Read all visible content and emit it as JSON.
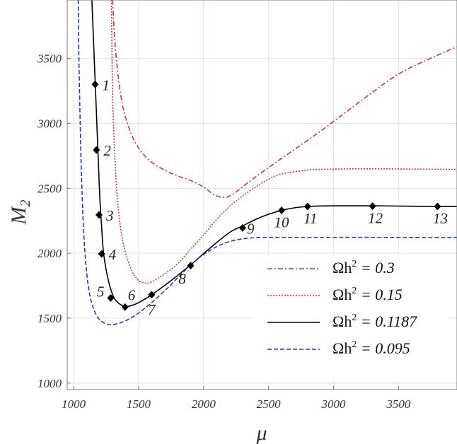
{
  "chart_data": {
    "type": "line",
    "xlabel": "μ",
    "ylabel_main": "M",
    "ylabel_sub": "2",
    "xlim": [
      950,
      3950
    ],
    "ylim": [
      950,
      3950
    ],
    "xticks": [
      1000,
      1500,
      2000,
      2500,
      3000,
      3500
    ],
    "yticks": [
      1000,
      1500,
      2000,
      2500,
      3000,
      3500
    ],
    "grid": true,
    "legend_position": "bottom-right",
    "series": [
      {
        "label_main": "Ωh",
        "label_exp": "2",
        "label_rest": " = 0.3",
        "color": "#e0303a",
        "dash": "7,3,2,3",
        "x": [
          1300,
          1312,
          1328,
          1350,
          1380,
          1420,
          1470,
          1530,
          1600,
          1700,
          1800,
          1900,
          2000,
          2080,
          2150,
          2200,
          2260,
          2350,
          2500,
          2700,
          2900,
          3100,
          3300,
          3500,
          3700,
          3950
        ],
        "y": [
          3950,
          3700,
          3500,
          3300,
          3120,
          2980,
          2860,
          2770,
          2700,
          2640,
          2595,
          2560,
          2510,
          2450,
          2430,
          2440,
          2480,
          2550,
          2660,
          2800,
          2940,
          3090,
          3240,
          3380,
          3480,
          3590
        ]
      },
      {
        "label_main": "Ωh",
        "label_exp": "2",
        "label_rest": " = 0.15",
        "color": "#e0303a",
        "dash": "2,2",
        "x": [
          1290,
          1298,
          1310,
          1330,
          1360,
          1400,
          1450,
          1500,
          1550,
          1600,
          1700,
          1800,
          1900,
          2000,
          2100,
          2200,
          2300,
          2400,
          2500,
          2600,
          2800,
          3000,
          3300,
          3600,
          3950
        ],
        "y": [
          3950,
          3300,
          2900,
          2500,
          2200,
          2000,
          1860,
          1790,
          1770,
          1780,
          1840,
          1920,
          2030,
          2140,
          2260,
          2360,
          2440,
          2510,
          2570,
          2610,
          2640,
          2648,
          2650,
          2648,
          2645
        ]
      },
      {
        "label_main": "Ωh",
        "label_exp": "2",
        "label_rest": " = 0.1187",
        "color": "#000000",
        "dash": "",
        "x": [
          1140,
          1150,
          1160,
          1170,
          1180,
          1190,
          1200,
          1215,
          1230,
          1260,
          1300,
          1340,
          1400,
          1480,
          1600,
          1750,
          1900,
          2050,
          2200,
          2300,
          2400,
          2500,
          2600,
          2700,
          2800,
          3000,
          3300,
          3600,
          3800,
          3950
        ],
        "y": [
          3950,
          3700,
          3450,
          3200,
          2950,
          2700,
          2450,
          2200,
          2000,
          1820,
          1680,
          1620,
          1590,
          1610,
          1680,
          1790,
          1910,
          2040,
          2160,
          2210,
          2260,
          2300,
          2330,
          2350,
          2360,
          2365,
          2365,
          2362,
          2360,
          2360
        ]
      },
      {
        "label_main": "Ωh",
        "label_exp": "2",
        "label_rest": " = 0.095",
        "color": "#2233dd",
        "dash": "6,3",
        "x": [
          1035,
          1040,
          1050,
          1060,
          1075,
          1095,
          1120,
          1150,
          1190,
          1240,
          1300,
          1400,
          1500,
          1600,
          1700,
          1800,
          1900,
          2000,
          2100,
          2200,
          2300,
          2400,
          2500,
          2600,
          2800,
          3000,
          3300,
          3600,
          3950
        ],
        "y": [
          3950,
          3500,
          3000,
          2600,
          2200,
          1900,
          1700,
          1580,
          1500,
          1460,
          1450,
          1480,
          1540,
          1620,
          1710,
          1810,
          1910,
          1990,
          2050,
          2090,
          2110,
          2120,
          2122,
          2122,
          2122,
          2122,
          2122,
          2121,
          2120
        ]
      }
    ],
    "points": [
      {
        "label": "1",
        "x": 1165,
        "y": 3300
      },
      {
        "label": "2",
        "x": 1175,
        "y": 2795
      },
      {
        "label": "3",
        "x": 1195,
        "y": 2295
      },
      {
        "label": "4",
        "x": 1215,
        "y": 1995
      },
      {
        "label": "5",
        "x": 1285,
        "y": 1655
      },
      {
        "label": "6",
        "x": 1395,
        "y": 1585
      },
      {
        "label": "7",
        "x": 1600,
        "y": 1680
      },
      {
        "label": "8",
        "x": 1900,
        "y": 1905
      },
      {
        "label": "9",
        "x": 2300,
        "y": 2195
      },
      {
        "label": "10",
        "x": 2600,
        "y": 2330
      },
      {
        "label": "11",
        "x": 2800,
        "y": 2360
      },
      {
        "label": "12",
        "x": 3300,
        "y": 2362
      },
      {
        "label": "13",
        "x": 3800,
        "y": 2360
      }
    ]
  }
}
